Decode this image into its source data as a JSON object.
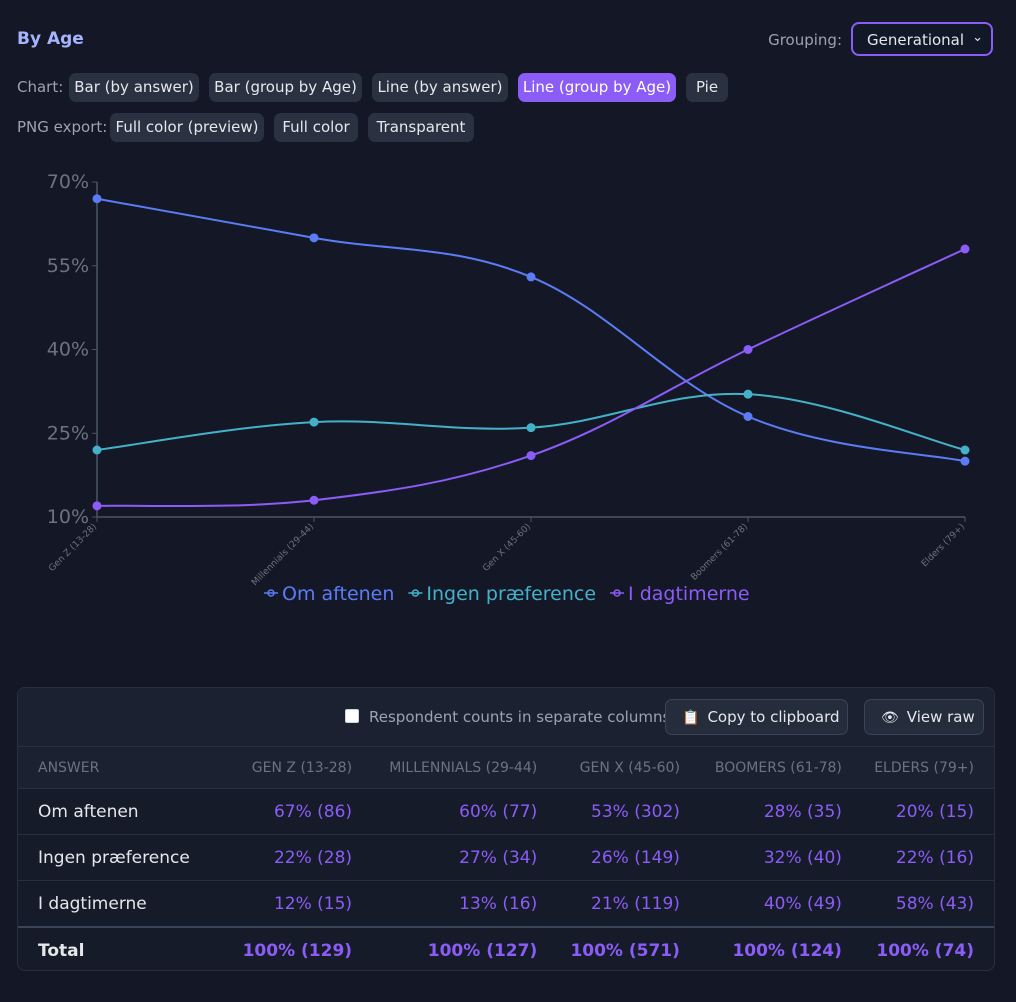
{
  "header": {
    "title": "By Age",
    "grouping_label": "Grouping:",
    "grouping_value": "Generational"
  },
  "chart_row": {
    "label": "Chart:",
    "options": [
      "Bar (by answer)",
      "Bar (group by Age)",
      "Line (by answer)",
      "Line (group by Age)",
      "Pie"
    ],
    "active": "Line (group by Age)"
  },
  "export_row": {
    "label": "PNG export:",
    "options": [
      "Full color (preview)",
      "Full color",
      "Transparent"
    ]
  },
  "chart_data": {
    "type": "line",
    "categories": [
      "Gen Z (13-28)",
      "Millennials (29-44)",
      "Gen X (45-60)",
      "Boomers (61-78)",
      "Elders (79+)"
    ],
    "series": [
      {
        "name": "Om aftenen",
        "values": [
          67,
          60,
          53,
          28,
          20
        ],
        "color": "#5b7cf6"
      },
      {
        "name": "Ingen præference",
        "values": [
          22,
          27,
          26,
          32,
          22
        ],
        "color": "#45b1c9"
      },
      {
        "name": "I dagtimerne",
        "values": [
          12,
          13,
          21,
          40,
          58
        ],
        "color": "#8b5cf6"
      }
    ],
    "ylim": [
      10,
      70
    ],
    "yticks": [
      10,
      25,
      40,
      55,
      70
    ],
    "ytick_labels": [
      "10%",
      "25%",
      "40%",
      "55%",
      "70%"
    ],
    "legend": "bottom",
    "grid": false
  },
  "table": {
    "checkbox_label": "Respondent counts in separate columns",
    "copy_label": "Copy to clipboard",
    "view_raw_label": "View raw",
    "columns": [
      "ANSWER",
      "GEN Z (13-28)",
      "MILLENNIALS (29-44)",
      "GEN X (45-60)",
      "BOOMERS (61-78)",
      "ELDERS (79+)"
    ],
    "rows": [
      [
        "Om aftenen",
        "67% (86)",
        "60% (77)",
        "53% (302)",
        "28% (35)",
        "20% (15)"
      ],
      [
        "Ingen præference",
        "22% (28)",
        "27% (34)",
        "26% (149)",
        "32% (40)",
        "22% (16)"
      ],
      [
        "I dagtimerne",
        "12% (15)",
        "13% (16)",
        "21% (119)",
        "40% (49)",
        "58% (43)"
      ]
    ],
    "total": [
      "Total",
      "100% (129)",
      "100% (127)",
      "100% (571)",
      "100% (124)",
      "100% (74)"
    ]
  }
}
